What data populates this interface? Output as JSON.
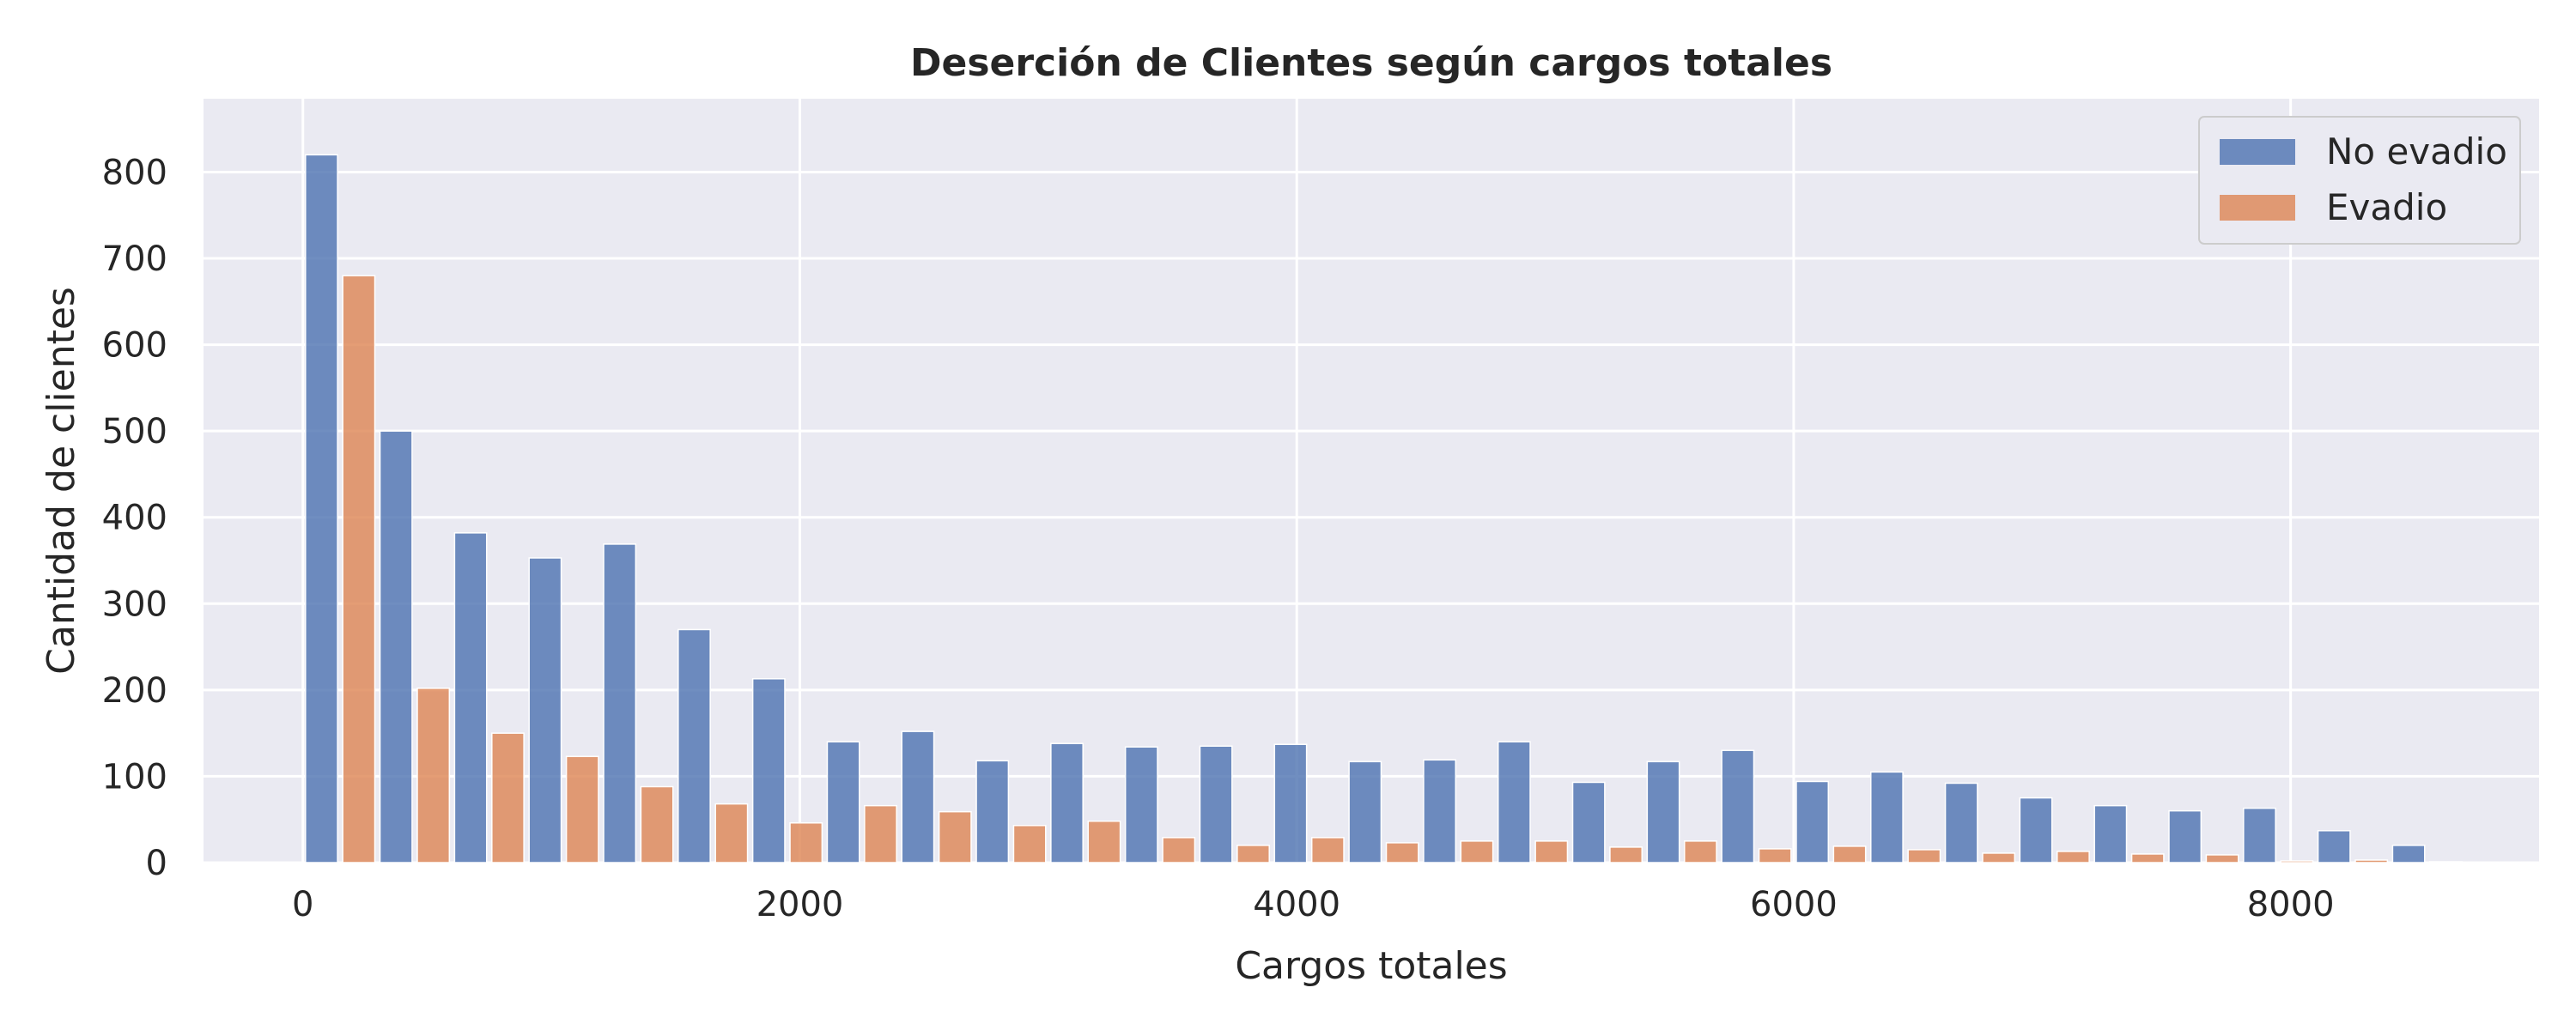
{
  "chart_data": {
    "type": "bar",
    "title": "Deserción de Clientes según cargos totales",
    "xlabel": "Cargos totales",
    "ylabel": "Cantidad de clientes",
    "xlim": [
      -400,
      9000
    ],
    "ylim": [
      0,
      885
    ],
    "xticks": [
      0,
      2000,
      4000,
      6000,
      8000
    ],
    "yticks": [
      0,
      100,
      200,
      300,
      400,
      500,
      600,
      700,
      800
    ],
    "grid": true,
    "legend_position": "top-right",
    "bin_start": 0,
    "bin_width": 300,
    "series": [
      {
        "name": "No evadio",
        "color": "#4c72b0",
        "values": [
          820,
          500,
          382,
          353,
          369,
          270,
          213,
          140,
          152,
          118,
          138,
          134,
          135,
          137,
          117,
          119,
          140,
          93,
          117,
          130,
          94,
          105,
          92,
          75,
          66,
          60,
          63,
          37,
          20
        ]
      },
      {
        "name": "Evadio",
        "color": "#dd8452",
        "values": [
          680,
          202,
          150,
          123,
          88,
          68,
          46,
          66,
          59,
          43,
          48,
          29,
          20,
          29,
          23,
          25,
          25,
          18,
          25,
          16,
          19,
          15,
          11,
          13,
          10,
          9,
          2,
          3,
          1
        ]
      }
    ]
  }
}
